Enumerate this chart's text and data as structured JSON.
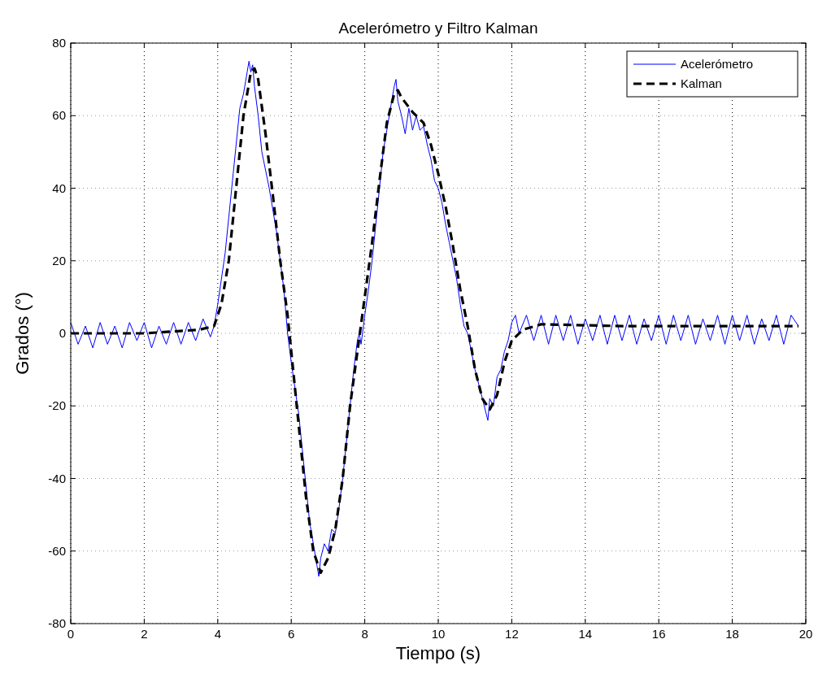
{
  "chart_data": {
    "type": "line",
    "title": "Acelerómetro y Filtro Kalman",
    "xlabel": "Tiempo (s)",
    "ylabel": "Grados (°)",
    "xlim": [
      0,
      20
    ],
    "ylim": [
      -80,
      80
    ],
    "xticks": [
      0,
      2,
      4,
      6,
      8,
      10,
      12,
      14,
      16,
      18,
      20
    ],
    "yticks": [
      -80,
      -60,
      -40,
      -20,
      0,
      20,
      40,
      60,
      80
    ],
    "grid": true,
    "legend": "top right",
    "marker": "none",
    "series": [
      {
        "name": "Acelerómetro",
        "color": "#0000ff",
        "line_style": "solid",
        "x": [
          0,
          0.2,
          0.4,
          0.6,
          0.8,
          1,
          1.2,
          1.4,
          1.6,
          1.8,
          2,
          2.2,
          2.4,
          2.6,
          2.8,
          3,
          3.2,
          3.4,
          3.6,
          3.8,
          3.9,
          4,
          4.1,
          4.2,
          4.3,
          4.4,
          4.5,
          4.6,
          4.7,
          4.8,
          4.85,
          4.9,
          4.95,
          5,
          5.1,
          5.2,
          5.4,
          5.6,
          5.8,
          5.9,
          6,
          6.1,
          6.2,
          6.3,
          6.4,
          6.5,
          6.6,
          6.7,
          6.75,
          6.8,
          6.9,
          7,
          7.1,
          7.2,
          7.3,
          7.4,
          7.5,
          7.6,
          7.7,
          7.8,
          7.85,
          7.9,
          8,
          8.1,
          8.2,
          8.3,
          8.4,
          8.5,
          8.6,
          8.7,
          8.8,
          8.85,
          8.9,
          9,
          9.1,
          9.2,
          9.3,
          9.4,
          9.5,
          9.6,
          9.7,
          9.8,
          9.9,
          10,
          10.1,
          10.2,
          10.3,
          10.4,
          10.5,
          10.6,
          10.7,
          10.8,
          10.9,
          11,
          11.1,
          11.2,
          11.3,
          11.35,
          11.4,
          11.5,
          11.6,
          11.7,
          11.8,
          11.9,
          12,
          12.1,
          12.2,
          12.4,
          12.6,
          12.8,
          13,
          13.2,
          13.4,
          13.6,
          13.8,
          14,
          14.2,
          14.4,
          14.6,
          14.8,
          15,
          15.2,
          15.4,
          15.6,
          15.8,
          16,
          16.2,
          16.4,
          16.6,
          16.8,
          17,
          17.2,
          17.4,
          17.6,
          17.8,
          18,
          18.2,
          18.4,
          18.6,
          18.8,
          19,
          19.2,
          19.4,
          19.6,
          19.8
        ],
        "values": [
          3,
          -3,
          2,
          -4,
          3,
          -3,
          2,
          -4,
          3,
          -2,
          3,
          -4,
          2,
          -3,
          3,
          -3,
          3,
          -2,
          4,
          -1,
          2,
          8,
          15,
          22,
          32,
          42,
          52,
          62,
          66,
          72,
          75,
          72,
          74,
          68,
          60,
          50,
          40,
          28,
          12,
          0,
          -8,
          -15,
          -22,
          -32,
          -42,
          -52,
          -58,
          -64,
          -67,
          -62,
          -58,
          -60,
          -54,
          -55,
          -48,
          -40,
          -30,
          -20,
          -10,
          -2,
          0,
          -3,
          5,
          12,
          20,
          30,
          40,
          50,
          56,
          62,
          68,
          70,
          64,
          60,
          55,
          62,
          56,
          60,
          56,
          57,
          52,
          48,
          42,
          40,
          36,
          30,
          25,
          20,
          15,
          8,
          2,
          0,
          -5,
          -10,
          -14,
          -18,
          -22,
          -24,
          -18,
          -20,
          -12,
          -10,
          -5,
          -2,
          3,
          5,
          0,
          5,
          -2,
          5,
          -3,
          5,
          -2,
          5,
          -3,
          4,
          -2,
          5,
          -3,
          5,
          -2,
          5,
          -3,
          4,
          -2,
          5,
          -3,
          5,
          -2,
          5,
          -3,
          4,
          -2,
          5,
          -3,
          5,
          -2,
          5,
          -3,
          4,
          -2,
          5,
          -3,
          5,
          2
        ]
      },
      {
        "name": "Kalman",
        "color": "#000000",
        "line_style": "dashed",
        "x": [
          0,
          2,
          3.5,
          3.9,
          4.1,
          4.3,
          4.5,
          4.7,
          4.9,
          5,
          5.1,
          5.3,
          5.5,
          5.7,
          5.9,
          6,
          6.2,
          6.4,
          6.6,
          6.8,
          7,
          7.2,
          7.4,
          7.6,
          7.8,
          8,
          8.2,
          8.4,
          8.6,
          8.8,
          8.9,
          9,
          9.3,
          9.6,
          9.8,
          10,
          10.2,
          10.4,
          10.6,
          10.8,
          11,
          11.2,
          11.4,
          11.6,
          11.8,
          12,
          12.3,
          12.8,
          15,
          19.8
        ],
        "values": [
          0,
          0,
          1,
          2,
          8,
          20,
          40,
          60,
          72,
          73,
          70,
          55,
          38,
          20,
          5,
          -5,
          -25,
          -45,
          -60,
          -66,
          -62,
          -54,
          -40,
          -20,
          -5,
          10,
          25,
          42,
          58,
          66,
          67,
          65,
          61,
          58,
          52,
          44,
          35,
          24,
          12,
          2,
          -10,
          -18,
          -21,
          -17,
          -8,
          -2,
          1,
          2.5,
          2,
          2
        ]
      }
    ]
  }
}
